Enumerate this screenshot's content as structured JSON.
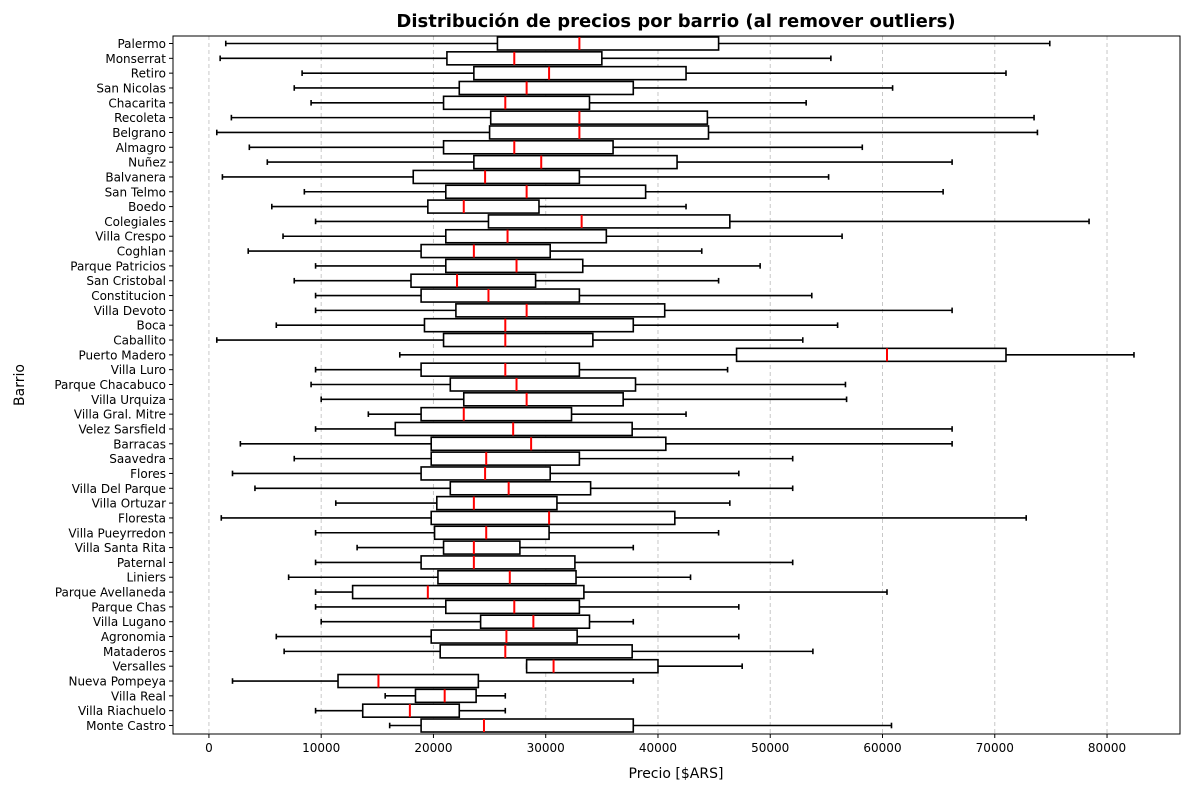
{
  "chart_data": {
    "type": "boxplot",
    "title": "Distribución de precios por barrio (al remover outliers)",
    "xlabel": "Precio [$ARS]",
    "ylabel": "Barrio",
    "xlim": [
      -3200,
      86500
    ],
    "xticks": [
      0,
      10000,
      20000,
      30000,
      40000,
      50000,
      60000,
      70000,
      80000
    ],
    "xtick_labels": [
      "0",
      "10000",
      "20000",
      "30000",
      "40000",
      "50000",
      "60000",
      "70000",
      "80000"
    ],
    "grid": "x-dashed",
    "colors": {
      "box": "#000000",
      "median": "#ff0000",
      "grid": "#c8c8c8"
    },
    "categories": [
      "Palermo",
      "Monserrat",
      "Retiro",
      "San Nicolas",
      "Chacarita",
      "Recoleta",
      "Belgrano",
      "Almagro",
      "Nuñez",
      "Balvanera",
      "San Telmo",
      "Boedo",
      "Colegiales",
      "Villa Crespo",
      "Coghlan",
      "Parque Patricios",
      "San Cristobal",
      "Constitucion",
      "Villa Devoto",
      "Boca",
      "Caballito",
      "Puerto Madero",
      "Villa Luro",
      "Parque Chacabuco",
      "Villa Urquiza",
      "Villa Gral. Mitre",
      "Velez Sarsfield",
      "Barracas",
      "Saavedra",
      "Flores",
      "Villa Del Parque",
      "Villa Ortuzar",
      "Floresta",
      "Villa Pueyrredon",
      "Villa Santa Rita",
      "Paternal",
      "Liniers",
      "Parque Avellaneda",
      "Parque Chas",
      "Villa Lugano",
      "Agronomia",
      "Mataderos",
      "Versalles",
      "Nueva Pompeya",
      "Villa Real",
      "Villa Riachuelo",
      "Monte Castro"
    ],
    "boxes": [
      {
        "min": 1500,
        "q1": 25700,
        "median": 33000,
        "q3": 45400,
        "max": 74900
      },
      {
        "min": 1000,
        "q1": 21200,
        "median": 27200,
        "q3": 35000,
        "max": 55400
      },
      {
        "min": 8300,
        "q1": 23600,
        "median": 30300,
        "q3": 42500,
        "max": 71000
      },
      {
        "min": 7600,
        "q1": 22300,
        "median": 28300,
        "q3": 37800,
        "max": 60900
      },
      {
        "min": 9100,
        "q1": 20900,
        "median": 26400,
        "q3": 33900,
        "max": 53200
      },
      {
        "min": 2000,
        "q1": 25100,
        "median": 33000,
        "q3": 44400,
        "max": 73500
      },
      {
        "min": 700,
        "q1": 25000,
        "median": 33000,
        "q3": 44500,
        "max": 73800
      },
      {
        "min": 3600,
        "q1": 20900,
        "median": 27200,
        "q3": 36000,
        "max": 58200
      },
      {
        "min": 5200,
        "q1": 23600,
        "median": 29600,
        "q3": 41700,
        "max": 66200
      },
      {
        "min": 1200,
        "q1": 18200,
        "median": 24600,
        "q3": 33000,
        "max": 55200
      },
      {
        "min": 8500,
        "q1": 21100,
        "median": 28300,
        "q3": 38900,
        "max": 65400
      },
      {
        "min": 5600,
        "q1": 19500,
        "median": 22700,
        "q3": 29400,
        "max": 42500
      },
      {
        "min": 9500,
        "q1": 24900,
        "median": 33200,
        "q3": 46400,
        "max": 78400
      },
      {
        "min": 6600,
        "q1": 21100,
        "median": 26600,
        "q3": 35400,
        "max": 56400
      },
      {
        "min": 3500,
        "q1": 18900,
        "median": 23600,
        "q3": 30400,
        "max": 43900
      },
      {
        "min": 9500,
        "q1": 21100,
        "median": 27400,
        "q3": 33300,
        "max": 49100
      },
      {
        "min": 7600,
        "q1": 18000,
        "median": 22100,
        "q3": 29100,
        "max": 45400
      },
      {
        "min": 9500,
        "q1": 18900,
        "median": 24900,
        "q3": 33000,
        "max": 53700
      },
      {
        "min": 9500,
        "q1": 22000,
        "median": 28300,
        "q3": 40600,
        "max": 66200
      },
      {
        "min": 6000,
        "q1": 19200,
        "median": 26400,
        "q3": 37800,
        "max": 56000
      },
      {
        "min": 700,
        "q1": 20900,
        "median": 26400,
        "q3": 34200,
        "max": 52900
      },
      {
        "min": 17000,
        "q1": 47000,
        "median": 60400,
        "q3": 71000,
        "max": 82400
      },
      {
        "min": 9500,
        "q1": 18900,
        "median": 26400,
        "q3": 33000,
        "max": 46200
      },
      {
        "min": 9100,
        "q1": 21500,
        "median": 27400,
        "q3": 38000,
        "max": 56700
      },
      {
        "min": 10000,
        "q1": 22700,
        "median": 28300,
        "q3": 36900,
        "max": 56800
      },
      {
        "min": 14200,
        "q1": 18900,
        "median": 22700,
        "q3": 32300,
        "max": 42500
      },
      {
        "min": 9500,
        "q1": 16600,
        "median": 27100,
        "q3": 37700,
        "max": 66200
      },
      {
        "min": 2800,
        "q1": 19800,
        "median": 28700,
        "q3": 40700,
        "max": 66200
      },
      {
        "min": 7600,
        "q1": 19800,
        "median": 24700,
        "q3": 33000,
        "max": 52000
      },
      {
        "min": 2100,
        "q1": 18900,
        "median": 24600,
        "q3": 30400,
        "max": 47200
      },
      {
        "min": 4100,
        "q1": 21500,
        "median": 26700,
        "q3": 34000,
        "max": 52000
      },
      {
        "min": 11300,
        "q1": 20300,
        "median": 23600,
        "q3": 31000,
        "max": 46400
      },
      {
        "min": 1100,
        "q1": 19800,
        "median": 30300,
        "q3": 41500,
        "max": 72800
      },
      {
        "min": 9500,
        "q1": 20100,
        "median": 24700,
        "q3": 30300,
        "max": 45400
      },
      {
        "min": 13200,
        "q1": 20900,
        "median": 23600,
        "q3": 27700,
        "max": 37800
      },
      {
        "min": 9500,
        "q1": 18900,
        "median": 23600,
        "q3": 32600,
        "max": 52000
      },
      {
        "min": 7100,
        "q1": 20400,
        "median": 26800,
        "q3": 32700,
        "max": 42900
      },
      {
        "min": 9500,
        "q1": 12800,
        "median": 19500,
        "q3": 33400,
        "max": 60400
      },
      {
        "min": 9500,
        "q1": 21100,
        "median": 27200,
        "q3": 33000,
        "max": 47200
      },
      {
        "min": 10000,
        "q1": 24200,
        "median": 28900,
        "q3": 33900,
        "max": 37800
      },
      {
        "min": 6000,
        "q1": 19800,
        "median": 26500,
        "q3": 32800,
        "max": 47200
      },
      {
        "min": 6700,
        "q1": 20600,
        "median": 26400,
        "q3": 37700,
        "max": 53800
      },
      {
        "min": 28300,
        "q1": 28300,
        "median": 30700,
        "q3": 40000,
        "max": 47500
      },
      {
        "min": 2100,
        "q1": 11500,
        "median": 15100,
        "q3": 24000,
        "max": 37800
      },
      {
        "min": 15700,
        "q1": 18400,
        "median": 21000,
        "q3": 23800,
        "max": 26400
      },
      {
        "min": 9500,
        "q1": 13700,
        "median": 17900,
        "q3": 22300,
        "max": 26400
      },
      {
        "min": 16100,
        "q1": 18900,
        "median": 24500,
        "q3": 37800,
        "max": 60800
      }
    ]
  }
}
